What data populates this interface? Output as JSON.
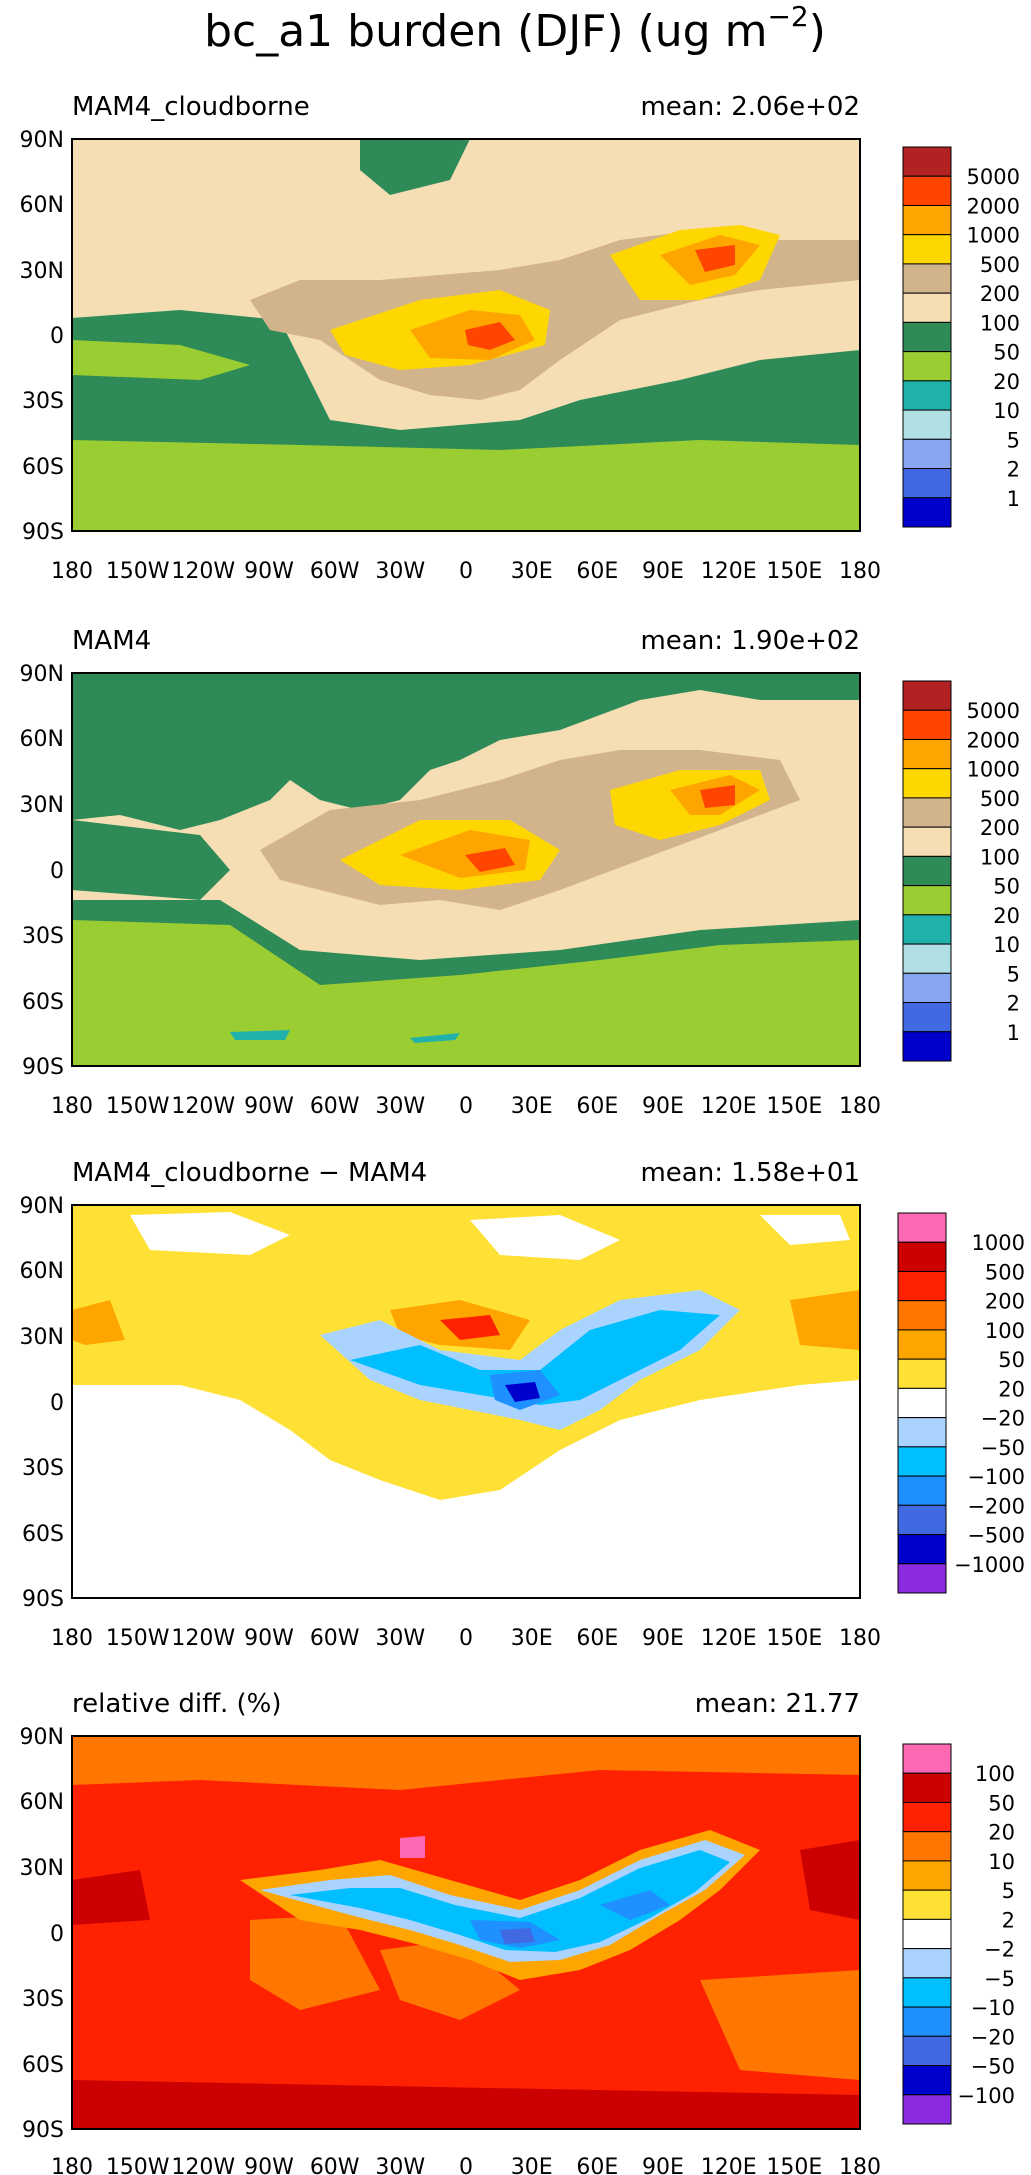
{
  "figure": {
    "title": "bc_a1 burden (DJF) (ug m",
    "title_sup": "−2",
    "title_close": ")"
  },
  "chart_data": [
    {
      "type": "heatmap",
      "title": "MAM4_cloudborne",
      "mean_label": "mean: 2.06e+02",
      "x_ticks": [
        "180",
        "150W",
        "120W",
        "90W",
        "60W",
        "30W",
        "0",
        "30E",
        "60E",
        "90E",
        "120E",
        "150E",
        "180"
      ],
      "y_ticks": [
        "90N",
        "60N",
        "30N",
        "0",
        "30S",
        "60S",
        "90S"
      ],
      "xlim": [
        -180,
        180
      ],
      "ylim": [
        -90,
        90
      ],
      "background_level": "100",
      "colorbar": {
        "levels": [
          "5000",
          "2000",
          "1000",
          "500",
          "200",
          "100",
          "50",
          "20",
          "10",
          "5",
          "2",
          "1"
        ],
        "colors": [
          "#b22222",
          "#ff4500",
          "#ffa500",
          "#ffd700",
          "#d2b48c",
          "#f5deb3",
          "#2e8b57",
          "#9acd32",
          "#20b2aa",
          "#b0e0e6",
          "#87a8f0",
          "#4169e1",
          "#0000cd"
        ]
      }
    },
    {
      "type": "heatmap",
      "title": "MAM4",
      "mean_label": "mean: 1.90e+02",
      "x_ticks": [
        "180",
        "150W",
        "120W",
        "90W",
        "60W",
        "30W",
        "0",
        "30E",
        "60E",
        "90E",
        "120E",
        "150E",
        "180"
      ],
      "y_ticks": [
        "90N",
        "60N",
        "30N",
        "0",
        "30S",
        "60S",
        "90S"
      ],
      "xlim": [
        -180,
        180
      ],
      "ylim": [
        -90,
        90
      ],
      "background_level": "100",
      "colorbar": {
        "levels": [
          "5000",
          "2000",
          "1000",
          "500",
          "200",
          "100",
          "50",
          "20",
          "10",
          "5",
          "2",
          "1"
        ],
        "colors": [
          "#b22222",
          "#ff4500",
          "#ffa500",
          "#ffd700",
          "#d2b48c",
          "#f5deb3",
          "#2e8b57",
          "#9acd32",
          "#20b2aa",
          "#b0e0e6",
          "#87a8f0",
          "#4169e1",
          "#0000cd"
        ]
      }
    },
    {
      "type": "heatmap",
      "title": "MAM4_cloudborne − MAM4",
      "mean_label": "mean: 1.58e+01",
      "x_ticks": [
        "180",
        "150W",
        "120W",
        "90W",
        "60W",
        "30W",
        "0",
        "30E",
        "60E",
        "90E",
        "120E",
        "150E",
        "180"
      ],
      "y_ticks": [
        "90N",
        "60N",
        "30N",
        "0",
        "30S",
        "60S",
        "90S"
      ],
      "xlim": [
        -180,
        180
      ],
      "ylim": [
        -90,
        90
      ],
      "background_level": "-20..20",
      "colorbar": {
        "levels": [
          "1000",
          "500",
          "200",
          "100",
          "50",
          "20",
          "−20",
          "−50",
          "−100",
          "−200",
          "−500",
          "−1000"
        ],
        "colors": [
          "#ff69b4",
          "#cc0000",
          "#ff2200",
          "#ff7700",
          "#ffa500",
          "#ffe135",
          "#ffffff",
          "#aad4ff",
          "#00bfff",
          "#1e90ff",
          "#4169e1",
          "#0000cd",
          "#8a2be2"
        ]
      }
    },
    {
      "type": "heatmap",
      "title": "relative diff. (%)",
      "mean_label": "mean: 21.77",
      "x_ticks": [
        "180",
        "150W",
        "120W",
        "90W",
        "60W",
        "30W",
        "0",
        "30E",
        "60E",
        "90E",
        "120E",
        "150E",
        "180"
      ],
      "y_ticks": [
        "90N",
        "60N",
        "30N",
        "0",
        "30S",
        "60S",
        "90S"
      ],
      "xlim": [
        -180,
        180
      ],
      "ylim": [
        -90,
        90
      ],
      "background_level": "20..50",
      "colorbar": {
        "levels": [
          "100",
          "50",
          "20",
          "10",
          "5",
          "2",
          "−2",
          "−5",
          "−10",
          "−20",
          "−50",
          "−100"
        ],
        "colors": [
          "#ff69b4",
          "#cc0000",
          "#ff2200",
          "#ff7700",
          "#ffa500",
          "#ffe135",
          "#ffffff",
          "#aad4ff",
          "#00bfff",
          "#1e90ff",
          "#4169e1",
          "#0000cd",
          "#8a2be2"
        ]
      }
    }
  ]
}
